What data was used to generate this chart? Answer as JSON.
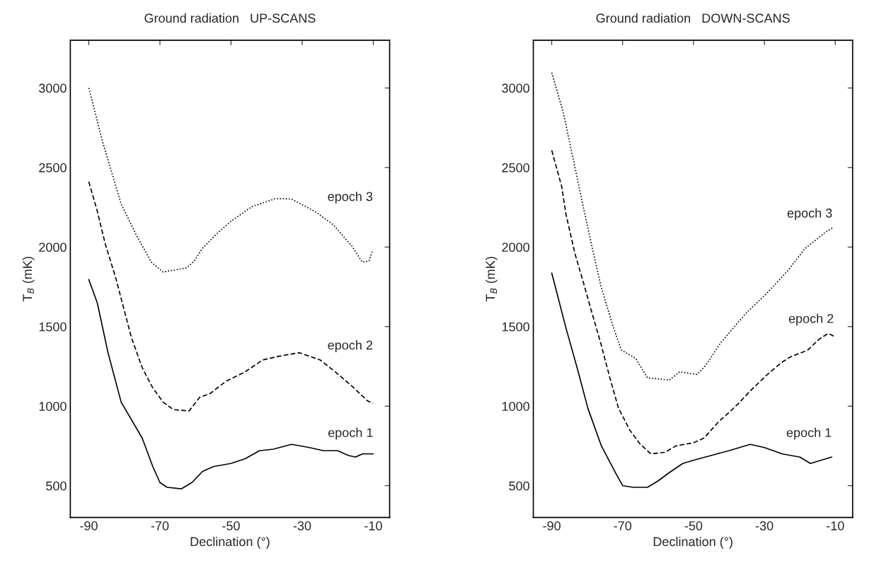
{
  "chart_data": [
    {
      "type": "line",
      "title": "Ground radiation   UP-SCANS",
      "xlabel": "Declination (°)",
      "ylabel": "T$_{B}$ (mK)",
      "xlim": [
        -95.2,
        -5.4
      ],
      "ylim": [
        300,
        3300
      ],
      "xticks": [
        -90,
        -70,
        -50,
        -30,
        -10
      ],
      "yticks": [
        500,
        1000,
        1500,
        2000,
        2500,
        3000
      ],
      "grid": false,
      "legend": false,
      "series": [
        {
          "name": "epoch 1",
          "color": "#000000",
          "line_style": "solid",
          "x": [
            -90,
            -87.6,
            -84.6,
            -80.9,
            -75,
            -72,
            -70,
            -68,
            -64,
            -61,
            -58,
            -55,
            -50,
            -46,
            -42,
            -38,
            -33,
            -28,
            -24,
            -20,
            -17,
            -15,
            -13,
            -10
          ],
          "values": [
            1796,
            1648,
            1336,
            1025,
            800,
            620,
            520,
            490,
            480,
            520,
            590,
            620,
            640,
            670,
            720,
            730,
            760,
            740,
            720,
            720,
            690,
            680,
            700,
            700
          ]
        },
        {
          "name": "epoch 2",
          "color": "#000000",
          "line_style": "dashed",
          "x": [
            -90,
            -87.6,
            -85.4,
            -82.4,
            -80.2,
            -78,
            -75,
            -72.1,
            -69.1,
            -66.2,
            -61.8,
            -58.8,
            -55.9,
            -51.4,
            -46.3,
            -41.1,
            -36.7,
            -30.8,
            -24.9,
            -20.5,
            -16,
            -11.6,
            -10.1
          ],
          "values": [
            2411,
            2224,
            2022,
            1804,
            1617,
            1430,
            1243,
            1118,
            1025,
            978,
            970,
            1056,
            1079,
            1157,
            1212,
            1290,
            1313,
            1336,
            1290,
            1212,
            1126,
            1033,
            1017
          ]
        },
        {
          "name": "epoch 3",
          "color": "#000000",
          "line_style": "dotted",
          "x": [
            -90,
            -86.1,
            -80.9,
            -76.5,
            -72.4,
            -69.1,
            -62.5,
            -60.3,
            -58.1,
            -54,
            -50,
            -44.1,
            -37.4,
            -33,
            -26.4,
            -21.2,
            -16,
            -13.1,
            -11.2,
            -10.1
          ],
          "values": [
            3000,
            2660,
            2271,
            2069,
            1905,
            1843,
            1869,
            1913,
            1991,
            2084,
            2162,
            2255,
            2305,
            2302,
            2224,
            2139,
            2006,
            1905,
            1913,
            1983
          ]
        }
      ]
    },
    {
      "type": "line",
      "title": "Ground radiation   DOWN-SCANS",
      "xlabel": "Declination (°)",
      "ylabel": "T$_{B}$ (mK)",
      "xlim": [
        -95.2,
        -5.1
      ],
      "ylim": [
        300,
        3300
      ],
      "xticks": [
        -90,
        -70,
        -50,
        -30,
        -10
      ],
      "yticks": [
        500,
        1000,
        1500,
        2000,
        2500,
        3000
      ],
      "grid": false,
      "legend": false,
      "series": [
        {
          "name": "epoch 1",
          "color": "#000000",
          "line_style": "solid",
          "x": [
            -90,
            -86,
            -82.7,
            -79.8,
            -76,
            -72,
            -70,
            -67,
            -63,
            -60,
            -57,
            -53,
            -50,
            -45,
            -40,
            -34,
            -30,
            -25,
            -20,
            -17,
            -14,
            -11
          ],
          "values": [
            1837,
            1492,
            1230,
            986,
            750,
            580,
            500,
            490,
            490,
            530,
            580,
            640,
            660,
            690,
            720,
            760,
            740,
            700,
            680,
            640,
            660,
            680
          ]
        },
        {
          "name": "epoch 2",
          "color": "#000000",
          "line_style": "dashed",
          "x": [
            -90,
            -87.2,
            -86,
            -83.5,
            -81,
            -78.6,
            -76.1,
            -73.6,
            -71.2,
            -68,
            -65,
            -62,
            -58,
            -55,
            -50,
            -47,
            -43,
            -40,
            -37.1,
            -34.2,
            -29.3,
            -25.2,
            -22.7,
            -17.8,
            -14.5,
            -12,
            -10.4
          ],
          "values": [
            2608,
            2381,
            2207,
            1963,
            1771,
            1582,
            1390,
            1178,
            990,
            850,
            760,
            700,
            710,
            750,
            770,
            800,
            900,
            960,
            1021,
            1091,
            1196,
            1274,
            1309,
            1352,
            1422,
            1457,
            1440
          ]
        },
        {
          "name": "epoch 3",
          "color": "#000000",
          "line_style": "dotted",
          "x": [
            -90,
            -86.8,
            -84.3,
            -81,
            -78.6,
            -76.1,
            -72.8,
            -70.4,
            -66.3,
            -63,
            -56.8,
            -53.9,
            -49,
            -46.5,
            -42.4,
            -39.1,
            -35,
            -29.3,
            -23.5,
            -18.6,
            -12.8,
            -10.8
          ],
          "values": [
            3096,
            2852,
            2590,
            2242,
            1998,
            1753,
            1509,
            1353,
            1300,
            1178,
            1164,
            1216,
            1199,
            1257,
            1396,
            1483,
            1588,
            1710,
            1849,
            1989,
            2093,
            2120
          ]
        }
      ]
    }
  ]
}
